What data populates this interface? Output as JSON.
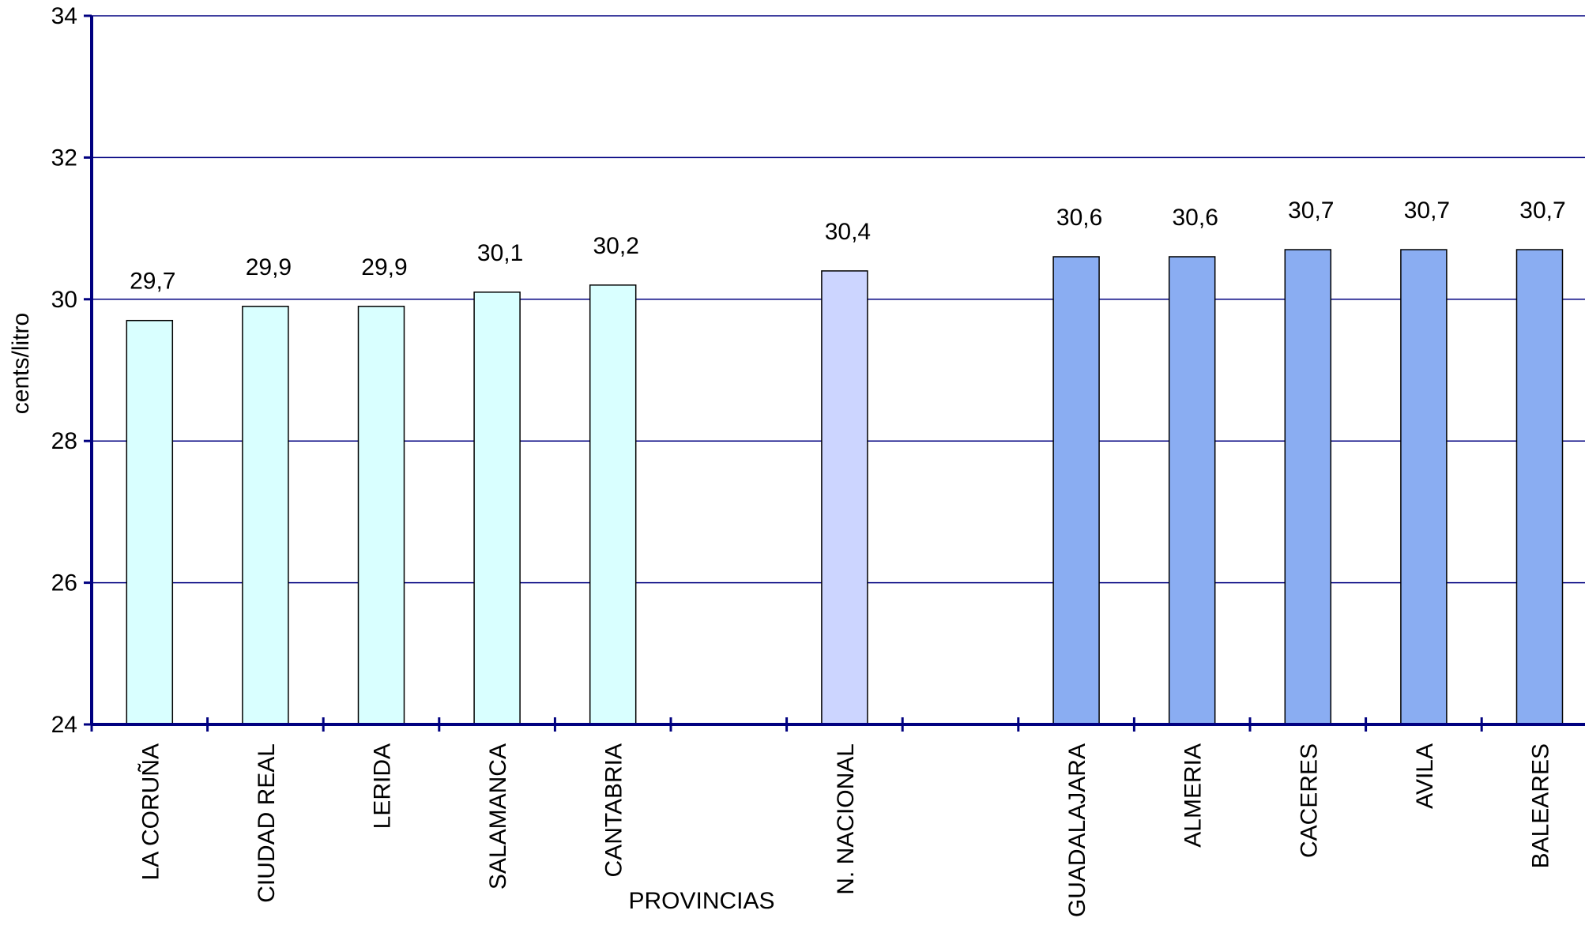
{
  "chart_data": {
    "type": "bar",
    "title": "",
    "xlabel": "PROVINCIAS",
    "ylabel": "cents/litro",
    "ylim": [
      24,
      34
    ],
    "yticks": [
      24,
      26,
      28,
      30,
      32,
      34
    ],
    "grid": true,
    "legend": "none",
    "categories": [
      "LA CORUÑA",
      "CIUDAD REAL",
      "LERIDA",
      "SALAMANCA",
      "CANTABRIA",
      "",
      "N. NACIONAL",
      "",
      "GUADALAJARA",
      "ALMERIA",
      "CACERES",
      "AVILA",
      "BALEARES"
    ],
    "values": [
      29.7,
      29.9,
      29.9,
      30.1,
      30.2,
      null,
      30.4,
      null,
      30.6,
      30.6,
      30.7,
      30.7,
      30.7
    ],
    "value_labels": [
      "29,7",
      "29,9",
      "29,9",
      "30,1",
      "30,2",
      "",
      "30,4",
      "",
      "30,6",
      "30,6",
      "30,7",
      "30,7",
      "30,7"
    ],
    "bar_colors": [
      "#d9ffff",
      "#d9ffff",
      "#d9ffff",
      "#d9ffff",
      "#d9ffff",
      "",
      "#ccd5ff",
      "",
      "#8aadf2",
      "#8aadf2",
      "#8aadf2",
      "#8aadf2",
      "#8aadf2"
    ],
    "colors": {
      "axis": "#000080",
      "grid": "#000080",
      "bar_outline": "#000000"
    }
  }
}
